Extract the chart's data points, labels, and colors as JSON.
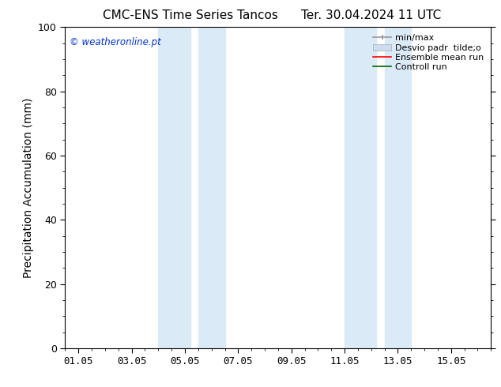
{
  "title_left": "CMC-ENS Time Series Tancos",
  "title_right": "Ter. 30.04.2024 11 UTC",
  "ylabel": "Precipitation Accumulation (mm)",
  "ylim": [
    0,
    100
  ],
  "xtick_labels": [
    "01.05",
    "03.05",
    "05.05",
    "07.05",
    "09.05",
    "11.05",
    "13.05",
    "15.05"
  ],
  "xtick_positions": [
    0,
    2,
    4,
    6,
    8,
    10,
    12,
    14
  ],
  "xlim": [
    -0.5,
    15.5
  ],
  "shaded_regions": [
    {
      "xmin": 3.0,
      "xmax": 4.2,
      "color": "#daeaf7"
    },
    {
      "xmin": 4.5,
      "xmax": 5.5,
      "color": "#daeaf7"
    },
    {
      "xmin": 10.0,
      "xmax": 11.2,
      "color": "#daeaf7"
    },
    {
      "xmin": 11.5,
      "xmax": 12.5,
      "color": "#daeaf7"
    }
  ],
  "watermark_text": "© weatheronline.pt",
  "watermark_color": "#0033cc",
  "legend_labels": [
    "min/max",
    "Desvio padr  tilde;o",
    "Ensemble mean run",
    "Controll run"
  ],
  "legend_colors": [
    "#999999",
    "#ccddef",
    "#ff0000",
    "#006600"
  ],
  "background_color": "#ffffff",
  "title_fontsize": 11,
  "tick_fontsize": 9,
  "ylabel_fontsize": 10,
  "legend_fontsize": 8
}
